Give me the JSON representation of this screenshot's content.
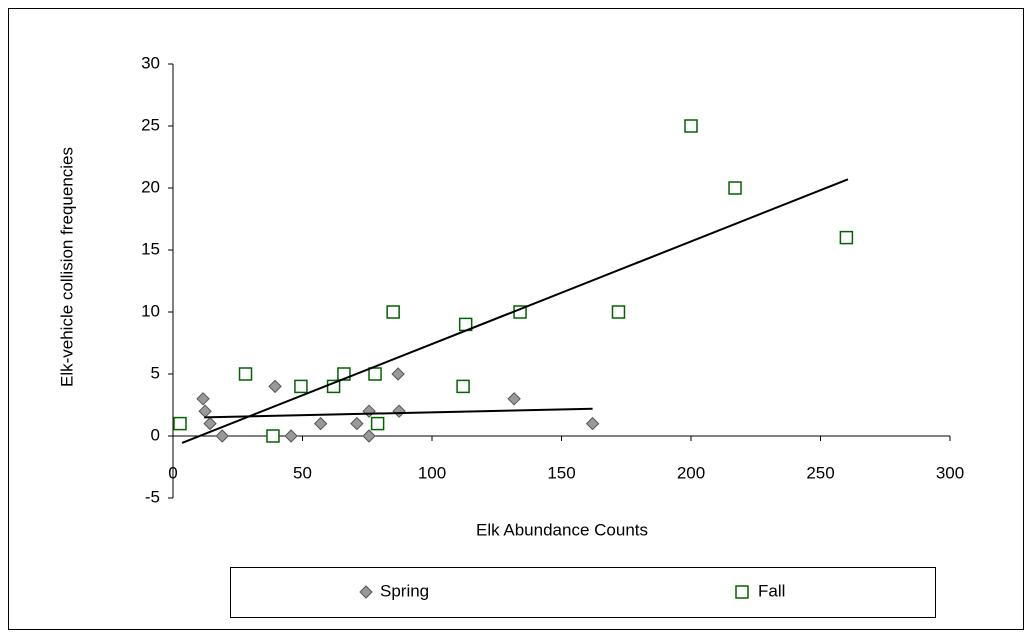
{
  "chart_data": {
    "type": "scatter",
    "x_label": "Elk Abundance Counts",
    "y_label": "Elk-vehicle collision frequencies",
    "xlim": [
      0,
      300
    ],
    "xticks": [
      0,
      50,
      100,
      150,
      200,
      250,
      300
    ],
    "ylim": [
      -5,
      30
    ],
    "yticks": [
      -5,
      0,
      5,
      10,
      15,
      20,
      25,
      30
    ],
    "series": [
      {
        "name": "Spring",
        "marker": "diamond",
        "color": "#999999",
        "x": [
          11.6,
          12.4,
          14.3,
          19,
          39.4,
          45.6,
          57,
          71,
          75.7,
          75.7,
          86.9,
          87.3,
          131.7,
          162
        ],
        "values": [
          3,
          2,
          1,
          0,
          4,
          0,
          1,
          1,
          2,
          0,
          5,
          2,
          3,
          1
        ],
        "trendline": {
          "x": [
            12,
            162
          ],
          "y": [
            1.5,
            2.2
          ]
        }
      },
      {
        "name": "Fall",
        "marker": "square",
        "color": "#006400",
        "x": [
          2.7,
          28,
          38.6,
          49.4,
          62,
          66,
          78,
          79,
          85,
          113,
          112,
          134,
          172,
          200,
          217,
          260
        ],
        "values": [
          1,
          5,
          0,
          4,
          4,
          5,
          5,
          1,
          10,
          9,
          4,
          10,
          10,
          25,
          20,
          16
        ],
        "trendline": {
          "x": [
            3.5,
            260.6
          ],
          "y": [
            -0.56,
            20.7
          ]
        }
      }
    ]
  }
}
